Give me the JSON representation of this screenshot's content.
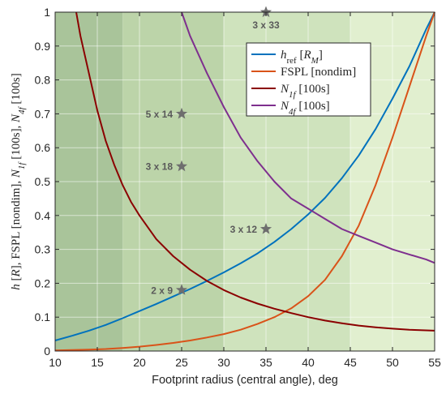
{
  "chart_data": {
    "type": "line",
    "xlabel": "Footprint radius (central angle), deg",
    "ylabel_parts": [
      {
        "t": "h",
        "i": true
      },
      {
        "t": " ["
      },
      {
        "t": "R",
        "i": true
      },
      {
        "t": "],  FSPL [nondim],  "
      },
      {
        "t": "N",
        "i": true
      },
      {
        "t": "1f",
        "i": true,
        "sub": true
      },
      {
        "t": " [100s],  "
      },
      {
        "t": "N",
        "i": true
      },
      {
        "t": "4f",
        "i": true,
        "sub": true
      },
      {
        "t": " [100s]"
      }
    ],
    "xlim": [
      10,
      55
    ],
    "ylim": [
      0,
      1
    ],
    "xticks": [
      10,
      15,
      20,
      25,
      30,
      35,
      40,
      45,
      50,
      55
    ],
    "yticks": [
      0,
      0.1,
      0.2,
      0.3,
      0.4,
      0.5,
      0.6,
      0.7,
      0.8,
      0.9,
      1
    ],
    "ytick_labels": [
      "0",
      "0.1",
      "0.2",
      "0.3",
      "0.4",
      "0.5",
      "0.6",
      "0.7",
      "0.8",
      "0.9",
      "1"
    ],
    "grid": true,
    "legend_position": "top-right",
    "background_bands": [
      {
        "x0": 10,
        "x1": 18,
        "color": "#a9c49a"
      },
      {
        "x0": 18,
        "x1": 30,
        "color": "#bcd4a9"
      },
      {
        "x0": 30,
        "x1": 45,
        "color": "#cfe3bd"
      },
      {
        "x0": 45,
        "x1": 55,
        "color": "#e1efcf"
      }
    ],
    "series": [
      {
        "key": "href",
        "legend_parts": [
          {
            "t": "h",
            "i": true
          },
          {
            "t": "ref",
            "sub": true
          },
          {
            "t": " ["
          },
          {
            "t": "R",
            "i": true
          },
          {
            "t": "M",
            "i": true,
            "sub": true
          },
          {
            "t": "]"
          }
        ],
        "color": "#0072bd",
        "x": [
          10,
          12,
          14,
          16,
          18,
          20,
          22,
          24,
          26,
          28,
          30,
          32,
          34,
          36,
          38,
          40,
          42,
          44,
          46,
          48,
          50,
          52,
          54,
          55
        ],
        "y": [
          0.031,
          0.045,
          0.06,
          0.077,
          0.097,
          0.118,
          0.139,
          0.161,
          0.183,
          0.207,
          0.232,
          0.259,
          0.288,
          0.322,
          0.36,
          0.403,
          0.452,
          0.51,
          0.577,
          0.655,
          0.745,
          0.84,
          0.95,
          1.0
        ]
      },
      {
        "key": "fspl",
        "legend_parts": [
          {
            "t": "FSPL [nondim]"
          }
        ],
        "color": "#d95319",
        "x": [
          10,
          12,
          14,
          16,
          18,
          20,
          22,
          24,
          26,
          28,
          30,
          32,
          34,
          36,
          38,
          40,
          42,
          44,
          46,
          48,
          50,
          52,
          54,
          55
        ],
        "y": [
          0.002,
          0.003,
          0.004,
          0.006,
          0.009,
          0.013,
          0.018,
          0.024,
          0.031,
          0.04,
          0.05,
          0.063,
          0.08,
          0.1,
          0.126,
          0.162,
          0.21,
          0.28,
          0.37,
          0.49,
          0.63,
          0.78,
          0.93,
          1.0
        ]
      },
      {
        "key": "n1f",
        "legend_parts": [
          {
            "t": "N",
            "i": true
          },
          {
            "t": "1f",
            "i": true,
            "sub": true
          },
          {
            "t": " [100s]"
          }
        ],
        "color": "#8b0000",
        "x": [
          12.5,
          13,
          14,
          15,
          16,
          17,
          18,
          19,
          20,
          22,
          24,
          26,
          28,
          30,
          32,
          34,
          36,
          38,
          40,
          42,
          44,
          46,
          48,
          50,
          52,
          54,
          55
        ],
        "y": [
          1.0,
          0.93,
          0.82,
          0.71,
          0.62,
          0.55,
          0.49,
          0.44,
          0.4,
          0.33,
          0.28,
          0.24,
          0.207,
          0.18,
          0.158,
          0.14,
          0.125,
          0.112,
          0.1,
          0.09,
          0.082,
          0.075,
          0.07,
          0.066,
          0.063,
          0.061,
          0.06
        ]
      },
      {
        "key": "n4f",
        "legend_parts": [
          {
            "t": "N",
            "i": true
          },
          {
            "t": "4f",
            "i": true,
            "sub": true
          },
          {
            "t": " [100s]"
          }
        ],
        "color": "#7e2f8e",
        "x": [
          25,
          26,
          28,
          30,
          32,
          34,
          36,
          38,
          40,
          42,
          44,
          46,
          48,
          50,
          52,
          54,
          55
        ],
        "y": [
          1.0,
          0.93,
          0.82,
          0.72,
          0.63,
          0.56,
          0.5,
          0.45,
          0.42,
          0.39,
          0.36,
          0.34,
          0.32,
          0.3,
          0.285,
          0.27,
          0.26
        ]
      }
    ],
    "annotations": [
      {
        "x": 35,
        "y": 1.0,
        "label": "3 x 33",
        "label_pos": "below"
      },
      {
        "x": 25,
        "y": 0.7,
        "label": "5 x 14",
        "label_pos": "left"
      },
      {
        "x": 25,
        "y": 0.545,
        "label": "3 x 18",
        "label_pos": "left"
      },
      {
        "x": 35,
        "y": 0.36,
        "label": "3 x 12",
        "label_pos": "left"
      },
      {
        "x": 25,
        "y": 0.18,
        "label": "2 x 9",
        "label_pos": "left"
      }
    ],
    "annotation_color": "#6e6e6e"
  }
}
